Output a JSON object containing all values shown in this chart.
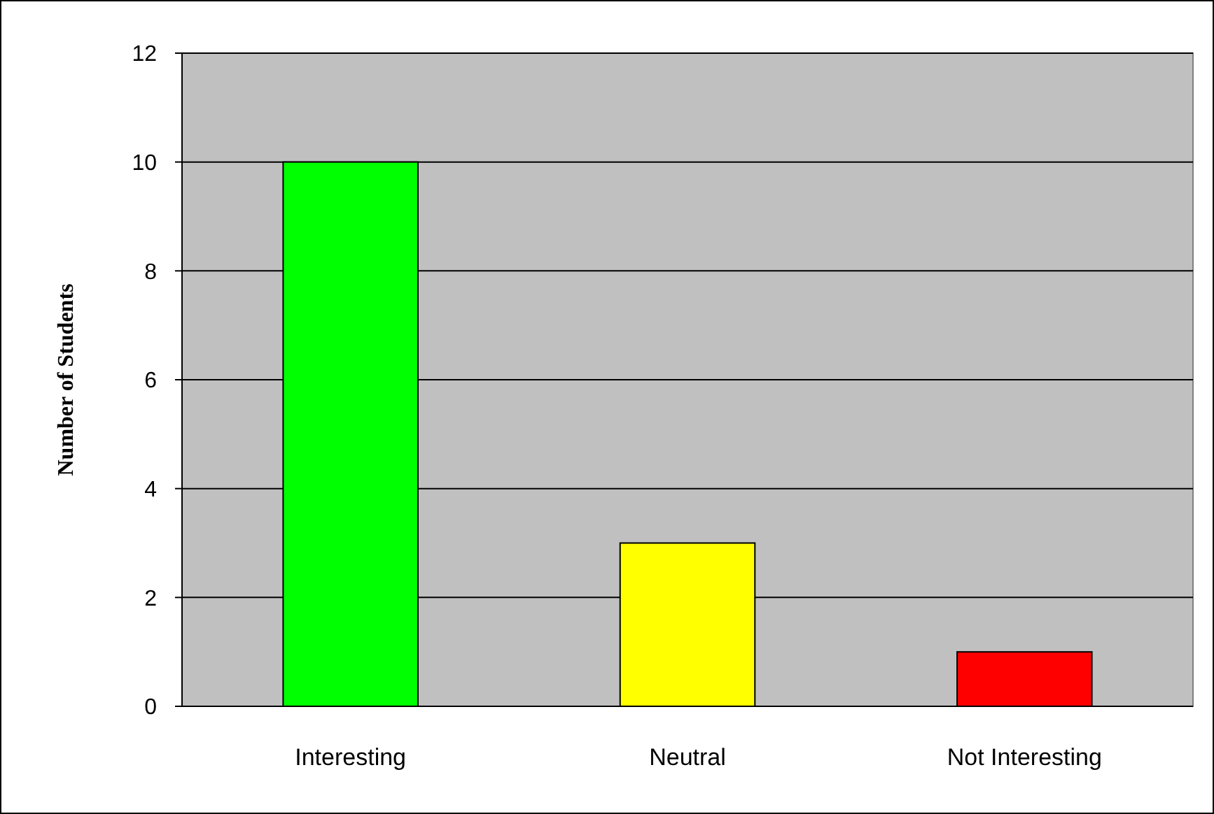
{
  "chart_data": {
    "type": "bar",
    "ylabel": "Number of Students",
    "categories": [
      "Interesting",
      "Neutral",
      "Not Interesting"
    ],
    "values": [
      10,
      3,
      1
    ],
    "colors": [
      "#00ff00",
      "#ffff00",
      "#ff0000"
    ],
    "ylim": [
      0,
      12
    ],
    "yticks": [
      0,
      2,
      4,
      6,
      8,
      10,
      12
    ],
    "grid": "y"
  }
}
